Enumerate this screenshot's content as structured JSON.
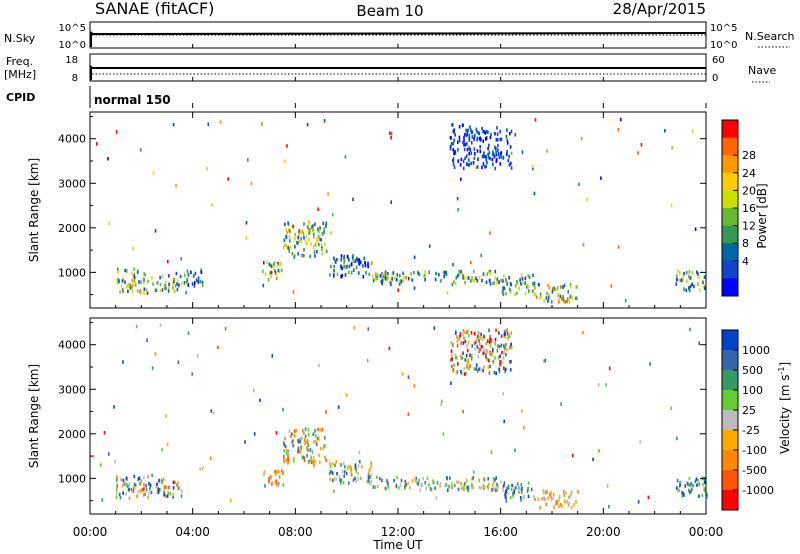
{
  "header": {
    "left_title": "SANAE (fitACF)",
    "center_title": "Beam 10",
    "right_title": "28/Apr/2015"
  },
  "top_panels": {
    "nsky": {
      "label": "N.Sky",
      "ticks": [
        "10^5",
        "10^0"
      ]
    },
    "nsearch": {
      "label": "N.Search",
      "ticks": [
        "10^5",
        "10^0"
      ]
    },
    "freq": {
      "label_line1": "Freq.",
      "label_line2": "[MHz]",
      "ticks": [
        "18",
        "8"
      ]
    },
    "nave": {
      "label": "Nave",
      "ticks": [
        "60",
        "0"
      ]
    },
    "cpid": {
      "label": "CPID",
      "value": "normal 150"
    }
  },
  "colorbars": {
    "power": {
      "label": "Power [dB]",
      "ticks": [
        "28",
        "24",
        "20",
        "16",
        "12",
        "8",
        "4"
      ],
      "colors": [
        "#ff0000",
        "#ff6600",
        "#ff9900",
        "#ffcc00",
        "#ccdd00",
        "#66bb33",
        "#339955",
        "#0066aa",
        "#1144cc",
        "#0000ff"
      ]
    },
    "velocity": {
      "label_main": "Velocity",
      "label_units": "[m s",
      "label_exp": "-1",
      "label_close": "]",
      "ticks": [
        "1000",
        "500",
        "100",
        "25",
        "-25",
        "-100",
        "-500",
        "-1000"
      ],
      "colors": [
        "#0044cc",
        "#3366aa",
        "#339966",
        "#66cc33",
        "#bbbbbb",
        "#ffaa00",
        "#ff8800",
        "#ff5500",
        "#ff0000"
      ]
    }
  },
  "chart_data": {
    "type": "heatmap",
    "xlabel": "Time UT",
    "x_ticks": [
      "00:00",
      "04:00",
      "08:00",
      "12:00",
      "16:00",
      "20:00",
      "00:00"
    ],
    "xlim_hours": [
      0,
      24
    ],
    "ylabel": "Slant Range [km]",
    "y_ticks": [
      1000,
      2000,
      3000,
      4000
    ],
    "ylim": [
      200,
      4600
    ],
    "grid": false,
    "panels": [
      {
        "name": "Power",
        "echo_regions": [
          {
            "t": [
              1.0,
              2.4
            ],
            "r": [
              500,
              1050
            ],
            "level": [
              1,
              7
            ]
          },
          {
            "t": [
              2.4,
              3.6
            ],
            "r": [
              550,
              950
            ],
            "level": [
              1,
              7
            ]
          },
          {
            "t": [
              3.6,
              4.4
            ],
            "r": [
              650,
              1050
            ],
            "level": [
              0,
              4
            ]
          },
          {
            "t": [
              6.7,
              7.5
            ],
            "r": [
              800,
              1200
            ],
            "level": [
              1,
              6
            ]
          },
          {
            "t": [
              7.5,
              9.2
            ],
            "r": [
              1300,
              2100
            ],
            "level": [
              1,
              7
            ]
          },
          {
            "t": [
              9.3,
              11.0
            ],
            "r": [
              850,
              1350
            ],
            "level": [
              0,
              4
            ]
          },
          {
            "t": [
              11.0,
              16.0
            ],
            "r": [
              700,
              1000
            ],
            "level": [
              1,
              5
            ]
          },
          {
            "t": [
              16.0,
              17.3
            ],
            "r": [
              450,
              900
            ],
            "level": [
              1,
              6
            ]
          },
          {
            "t": [
              17.3,
              19.0
            ],
            "r": [
              300,
              700
            ],
            "level": [
              2,
              8
            ]
          },
          {
            "t": [
              14.0,
              16.4
            ],
            "r": [
              3300,
              4300
            ],
            "level": [
              0,
              2
            ]
          },
          {
            "t": [
              22.8,
              24.0
            ],
            "r": [
              550,
              1000
            ],
            "level": [
              1,
              6
            ]
          }
        ]
      },
      {
        "name": "Velocity",
        "echo_regions": [
          {
            "t": [
              1.0,
              2.4
            ],
            "r": [
              500,
              1050
            ],
            "level": [
              1,
              8
            ]
          },
          {
            "t": [
              2.4,
              3.6
            ],
            "r": [
              550,
              950
            ],
            "level": [
              1,
              8
            ]
          },
          {
            "t": [
              6.7,
              7.5
            ],
            "r": [
              800,
              1200
            ],
            "level": [
              1,
              6
            ]
          },
          {
            "t": [
              7.5,
              9.2
            ],
            "r": [
              1300,
              2100
            ],
            "level": [
              1,
              7
            ]
          },
          {
            "t": [
              9.3,
              11.0
            ],
            "r": [
              850,
              1350
            ],
            "level": [
              3,
              8
            ]
          },
          {
            "t": [
              11.0,
              16.0
            ],
            "r": [
              700,
              1000
            ],
            "level": [
              3,
              7
            ]
          },
          {
            "t": [
              16.0,
              17.3
            ],
            "r": [
              450,
              900
            ],
            "level": [
              4,
              8
            ]
          },
          {
            "t": [
              17.3,
              19.0
            ],
            "r": [
              300,
              700
            ],
            "level": [
              2,
              4
            ]
          },
          {
            "t": [
              14.0,
              16.4
            ],
            "r": [
              3300,
              4300
            ],
            "level": [
              0,
              8
            ]
          },
          {
            "t": [
              22.8,
              24.0
            ],
            "r": [
              550,
              1000
            ],
            "level": [
              5,
              8
            ]
          }
        ]
      }
    ]
  }
}
